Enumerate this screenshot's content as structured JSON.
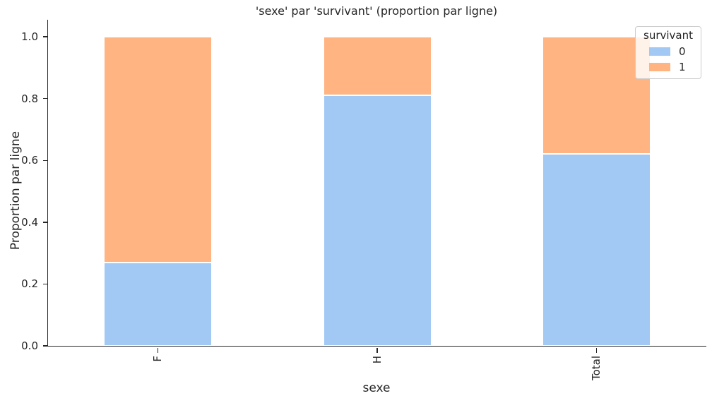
{
  "title": "'sexe' par 'survivant' (proportion par ligne)",
  "chart_data": {
    "type": "bar",
    "stacked": true,
    "title": "'sexe' par 'survivant' (proportion par ligne)",
    "xlabel": "sexe",
    "ylabel": "Proportion par ligne",
    "categories": [
      "F",
      "H",
      "Total"
    ],
    "series": [
      {
        "name": "0",
        "color": "#a1c9f4",
        "values": [
          0.27,
          0.81,
          0.62
        ]
      },
      {
        "name": "1",
        "color": "#ffb482",
        "values": [
          0.73,
          0.19,
          0.38
        ]
      }
    ],
    "ylim": [
      0.0,
      1.05
    ],
    "yticks": [
      "0.0",
      "0.2",
      "0.4",
      "0.6",
      "0.8",
      "1.0"
    ],
    "grid": false,
    "legend": {
      "title": "survivant",
      "position": "upper right",
      "entries": [
        "0",
        "1"
      ]
    },
    "colors": {
      "axis": "#262626",
      "bar_edge": "#ffffff",
      "legend_border": "#cccccc",
      "background": "#ffffff"
    }
  }
}
